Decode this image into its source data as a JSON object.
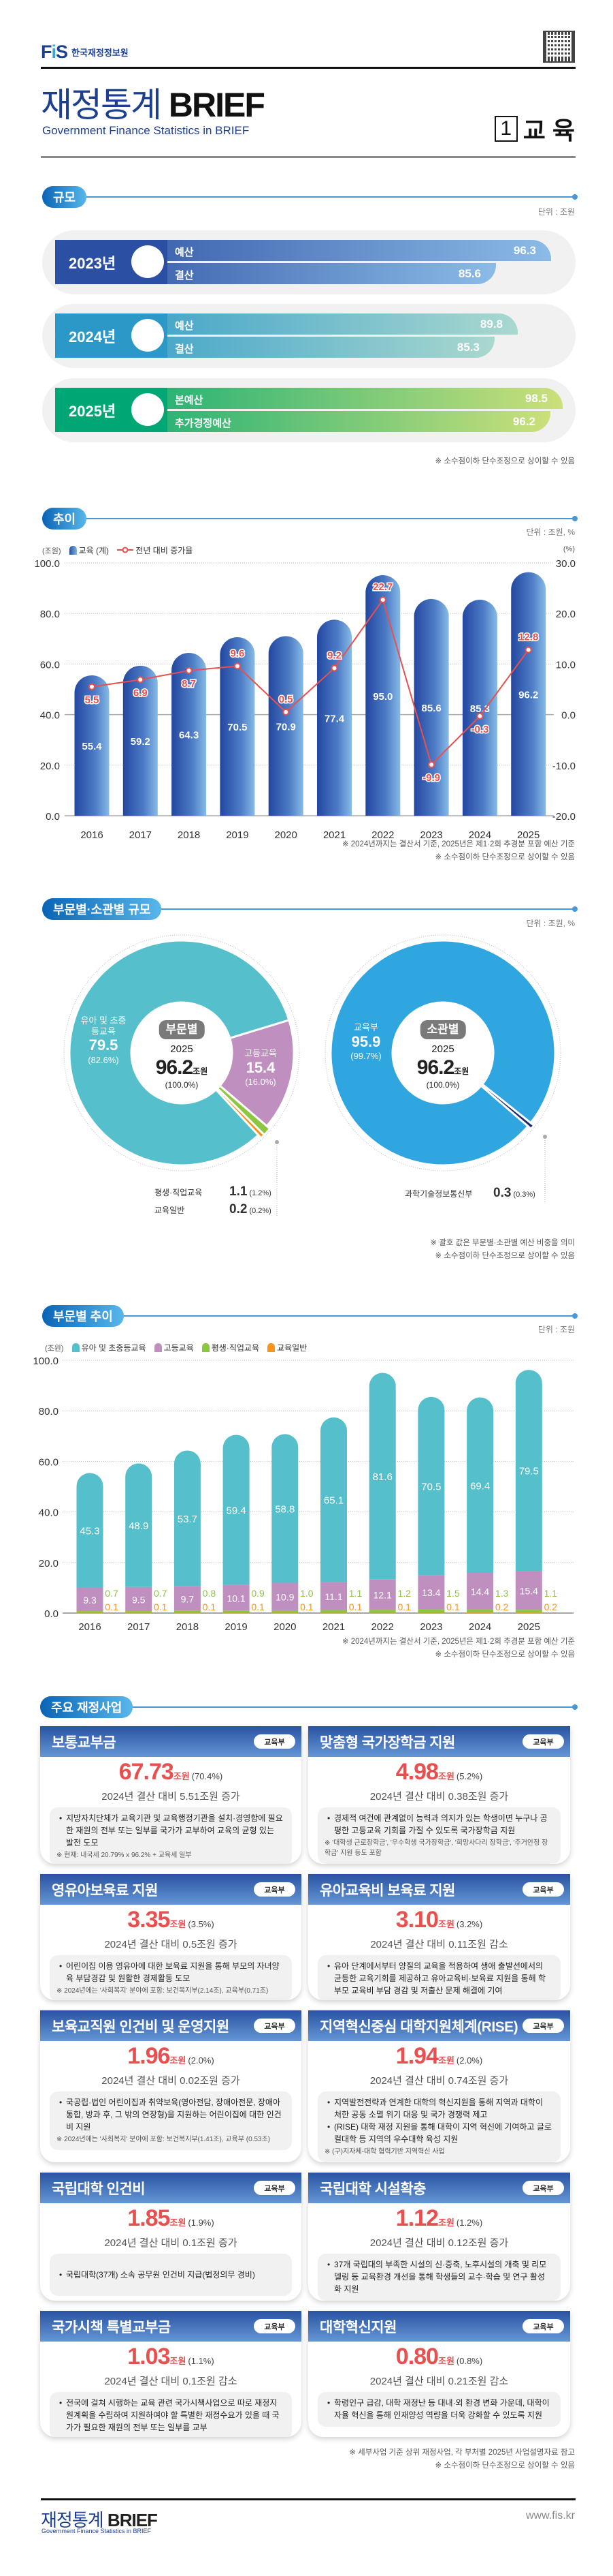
{
  "header": {
    "logo_text": "FIS",
    "org_name": "한국재정정보원",
    "title_kr": "재정통계",
    "title_en": "BRIEF",
    "subtitle": "Government Finance Statistics in BRIEF",
    "issue_no": "1",
    "topic": "교 육"
  },
  "scale": {
    "section_title": "규모",
    "unit": "단위 : 조원",
    "rows": [
      {
        "year": "2023년",
        "colors": [
          "#2b4fa2",
          "#8bbbe6"
        ],
        "bars": [
          {
            "label": "예산",
            "value": 96.3
          },
          {
            "label": "결산",
            "value": 85.6
          }
        ]
      },
      {
        "year": "2024년",
        "colors": [
          "#2b98c8",
          "#a9d8cf"
        ],
        "bars": [
          {
            "label": "예산",
            "value": 89.8
          },
          {
            "label": "결산",
            "value": 85.3
          }
        ]
      },
      {
        "year": "2025년",
        "colors": [
          "#00a775",
          "#cbe07a"
        ],
        "bars": [
          {
            "label": "본예산",
            "value": 98.5
          },
          {
            "label": "추가경정예산",
            "value": 96.2
          }
        ]
      }
    ],
    "note": "※ 소수점이하 단수조정으로 상이할 수 있음"
  },
  "trend": {
    "section_title": "추이",
    "unit": "단위 : 조원, %",
    "left_unit": "(조원)",
    "right_unit": "(%)",
    "notes": [
      "※ 2024년까지는 결산서 기준, 2025년은 제1·2회 추경분 포함 예산 기준",
      "※ 소수점이하 단수조정으로 상이할 수 있음"
    ]
  },
  "share": {
    "section_title": "부문별·소관별 규모",
    "unit": "단위 : 조원, %",
    "center": {
      "year": "2025",
      "total": "96.2",
      "unit": "조원",
      "pct": "(100.0%)"
    },
    "notes": [
      "※ 괄호 값은 부문별·소관별 예산 비중을 의미",
      "※ 소수점이하 단수조정으로 상이할 수 있음"
    ]
  },
  "sector_trend": {
    "section_title": "부문별 추이",
    "unit": "단위 : 조원",
    "left_unit": "(조원)",
    "notes": [
      "※ 2024년까지는 결산서 기준, 2025년은 제1·2회 추경분 포함 예산 기준",
      "※ 소수점이하 단수조정으로 상이할 수 있음"
    ]
  },
  "chart_data": [
    {
      "type": "bar",
      "title": "규모",
      "categories": [
        "2023년 예산",
        "2023년 결산",
        "2024년 예산",
        "2024년 결산",
        "2025년 본예산",
        "2025년 추가경정예산"
      ],
      "values": [
        96.3,
        85.6,
        89.8,
        85.3,
        98.5,
        96.2
      ],
      "unit": "조원"
    },
    {
      "type": "bar+line",
      "categories": [
        "2016",
        "2017",
        "2018",
        "2019",
        "2020",
        "2021",
        "2022",
        "2023",
        "2024",
        "2025"
      ],
      "series": [
        {
          "name": "교육 (계)",
          "axis": "left",
          "type": "bar",
          "color": "#2f5bae",
          "values": [
            55.4,
            59.2,
            64.3,
            70.5,
            70.9,
            77.4,
            95.0,
            85.6,
            85.3,
            96.2
          ]
        },
        {
          "name": "전년 대비 증가율",
          "axis": "right",
          "type": "line",
          "color": "#e8504f",
          "values": [
            5.5,
            6.9,
            8.7,
            9.6,
            0.5,
            9.2,
            22.7,
            -9.9,
            -0.3,
            12.8
          ]
        }
      ],
      "ylim_left": [
        0,
        100
      ],
      "yticks_left": [
        0,
        20,
        40,
        60,
        80,
        100
      ],
      "ylim_right": [
        -20,
        30
      ],
      "yticks_right": [
        -20,
        -10,
        0,
        10,
        20,
        30
      ],
      "ylabel_left": "(조원)",
      "ylabel_right": "(%)",
      "grid": true,
      "legend": "top-left"
    },
    {
      "type": "pie",
      "label": "부문별",
      "slices": [
        {
          "name": "유아 및 초중등교육",
          "value": 79.5,
          "pct": "(82.6%)",
          "color": "#55bfcc"
        },
        {
          "name": "고등교육",
          "value": 15.4,
          "pct": "(16.0%)",
          "color": "#bf8fc0"
        },
        {
          "name": "평생·직업교육",
          "value": 1.1,
          "pct": "(1.2%)",
          "color": "#8dc63f"
        },
        {
          "name": "교육일반",
          "value": 0.2,
          "pct": "(0.2%)",
          "color": "#f7941d"
        }
      ]
    },
    {
      "type": "pie",
      "label": "소관별",
      "slices": [
        {
          "name": "교육부",
          "value": 95.9,
          "pct": "(99.7%)",
          "color": "#2fa6e0"
        },
        {
          "name": "과학기술정보통신부",
          "value": 0.3,
          "pct": "(0.3%)",
          "color": "#1a2a6c"
        }
      ]
    },
    {
      "type": "bar",
      "stacked": true,
      "categories": [
        "2016",
        "2017",
        "2018",
        "2019",
        "2020",
        "2021",
        "2022",
        "2023",
        "2024",
        "2025"
      ],
      "series": [
        {
          "name": "유아 및 초중등교육",
          "color": "#55bfcc",
          "values": [
            45.3,
            48.9,
            53.7,
            59.4,
            58.8,
            65.1,
            81.6,
            70.5,
            69.4,
            79.5
          ]
        },
        {
          "name": "고등교육",
          "color": "#bf8fc0",
          "values": [
            9.3,
            9.5,
            9.7,
            10.1,
            10.9,
            11.1,
            12.1,
            13.4,
            14.4,
            15.4
          ]
        },
        {
          "name": "평생·직업교육",
          "color": "#8dc63f",
          "values": [
            0.7,
            0.7,
            0.8,
            0.9,
            1.0,
            1.1,
            1.2,
            1.5,
            1.3,
            1.1
          ]
        },
        {
          "name": "교육일반",
          "color": "#f7941d",
          "values": [
            0.1,
            0.1,
            0.1,
            0.1,
            0.1,
            0.1,
            0.1,
            0.1,
            0.2,
            0.2
          ]
        }
      ],
      "ylim": [
        0,
        100
      ],
      "yticks": [
        0,
        20,
        40,
        60,
        80,
        100
      ],
      "ylabel": "(조원)",
      "grid": true,
      "legend": "top-left"
    }
  ],
  "programs": {
    "section_title": "주요 재정사업",
    "items": [
      {
        "name": "보통교부금",
        "ministry": "교육부",
        "amount": "67.73",
        "unit": "조원",
        "share": "(70.4%)",
        "change": "2024년 결산 대비 5.51조원 증가",
        "bullets": [
          "지방자치단체가 교육기관 및 교육행정기관을 설치·경영함에 필요한 재원의 전부 또는 일부를 국가가 교부하여 교육의 균형 있는 발전 도모"
        ],
        "note": "※ 현재: 내국세 20.79% x 96.2% + 교육세 일부"
      },
      {
        "name": "맞춤형 국가장학금 지원",
        "ministry": "교육부",
        "amount": "4.98",
        "unit": "조원",
        "share": "(5.2%)",
        "change": "2024년 결산 대비 0.38조원 증가",
        "bullets": [
          "경제적 여건에 관계없이 능력과 의지가 있는 학생이면 누구나 공평한 고등교육 기회를 가질 수 있도록 국가장학금 지원"
        ],
        "note": "※ '대학생 근로장학금', '우수학생 국가장학금', '희망사다리 장학금', '주거안정 장학금' 지원 등도 포함"
      },
      {
        "name": "영유아보육료 지원",
        "ministry": "교육부",
        "amount": "3.35",
        "unit": "조원",
        "share": "(3.5%)",
        "change": "2024년 결산 대비 0.5조원 증가",
        "bullets": [
          "어린이집 이용 영유아에 대한 보육료 지원을 통해 부모의 자녀양육 부담경감 및 원활한 경제활동 도모"
        ],
        "note": "※ 2024년에는 '사회복지' 분야에 포함: 보건복지부(2.14조), 교육부(0.71조)"
      },
      {
        "name": "유아교육비 보육료 지원",
        "ministry": "교육부",
        "amount": "3.10",
        "unit": "조원",
        "share": "(3.2%)",
        "change": "2024년 결산 대비 0.11조원 감소",
        "bullets": [
          "유아 단계에서부터 양질의 교육을 적용하여 생애 출발선에서의 균등한 교육기회를 제공하고 유아교육비·보육료 지원을 통해 학부모 교육비 부담 경감 및 저출산 문제 해결에 기여"
        ],
        "note": ""
      },
      {
        "name": "보육교직원 인건비 및 운영지원",
        "ministry": "교육부",
        "amount": "1.96",
        "unit": "조원",
        "share": "(2.0%)",
        "change": "2024년 결산 대비 0.02조원 증가",
        "bullets": [
          "국공립·법인 어린이집과 취약보육(영아전담, 장애아전문, 장애아통합, 방과 후, 그 밖의 연장형)을 지원하는 어린이집에 대한 인건비 지원"
        ],
        "note": "※ 2024년에는 '사회복지' 분야에 포함: 보건복지부(1.41조), 교육부 (0.53조)"
      },
      {
        "name": "지역혁신중심 대학지원체계(RISE)",
        "ministry": "교육부",
        "amount": "1.94",
        "unit": "조원",
        "share": "(2.0%)",
        "change": "2024년 결산 대비 0.74조원 증가",
        "bullets": [
          "지역발전전략과 연계한 대학의 혁신지원을 통해 지역과 대학이 처한 공동 소멸 위기 대응 및 국가 경쟁력 제고",
          "(RISE) 대학 재정 지원을 통해 대학이 지역 혁신에 기여하고 글로컬대학 등 지역의 우수대학 육성 지원"
        ],
        "note": "※ (구)지자체-대학 협력기반 지역혁신 사업"
      },
      {
        "name": "국립대학 인건비",
        "ministry": "교육부",
        "amount": "1.85",
        "unit": "조원",
        "share": "(1.9%)",
        "change": "2024년 결산 대비 0.1조원 증가",
        "bullets": [
          "국립대학(37개) 소속 공무원 인건비 지급(법정의무 경비)"
        ],
        "note": ""
      },
      {
        "name": "국립대학 시설확충",
        "ministry": "교육부",
        "amount": "1.12",
        "unit": "조원",
        "share": "(1.2%)",
        "change": "2024년 결산 대비 0.12조원 증가",
        "bullets": [
          "37개 국립대의 부족한 시설의 신·증축, 노후시설의 개축 및 리모델링 등 교육환경 개선을 통해 학생들의 교수·학습 및 연구 활성화 지원"
        ],
        "note": ""
      },
      {
        "name": "국가시책 특별교부금",
        "ministry": "교육부",
        "amount": "1.03",
        "unit": "조원",
        "share": "(1.1%)",
        "change": "2024년 결산 대비 0.1조원 감소",
        "bullets": [
          "전국에 걸쳐 시행하는 교육 관련 국가시책사업으로 따로 재정지원계획을 수립하여 지원하여야 할 특별한 재정수요가 있을 때 국가가 필요한 재원의 전부 또는 일부를 교부"
        ],
        "note": ""
      },
      {
        "name": "대학혁신지원",
        "ministry": "교육부",
        "amount": "0.80",
        "unit": "조원",
        "share": "(0.8%)",
        "change": "2024년 결산 대비 0.21조원 감소",
        "bullets": [
          "학령인구 급감, 대학 재정난 등 대내·외 환경 변화 가운데, 대학이 자율 혁신을 통해 인재양성 역량을 더욱 강화할 수 있도록 지원"
        ],
        "note": ""
      }
    ],
    "notes": [
      "※ 세부사업 기준 상위 재정사업, 각 부처별 2025년 사업설명자료 참고",
      "※ 소수점이하 단수조정으로 상이할 수 있음"
    ]
  },
  "footer": {
    "title_kr": "재정통계",
    "title_en": "BRIEF",
    "subtitle": "Government Finance Statistics in BRIEF",
    "url": "www.fis.kr"
  }
}
